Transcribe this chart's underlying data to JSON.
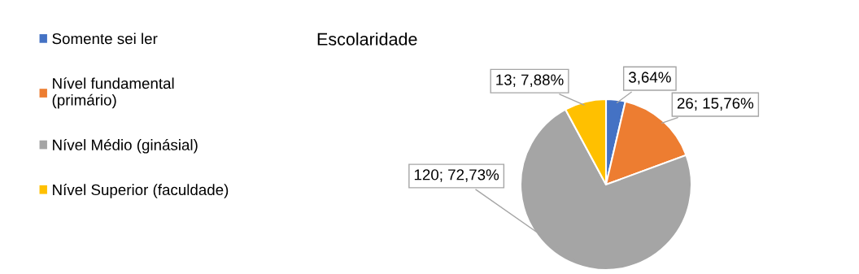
{
  "chart_data": {
    "type": "pie",
    "title": "Escolaridade",
    "categories": [
      "Somente sei ler",
      "Nível fundamental\n(primário)",
      "Nível Médio (ginásial)",
      "Nível Superior (faculdade)"
    ],
    "values": [
      3.64,
      15.76,
      72.73,
      7.88
    ],
    "colors": [
      "#4472c4",
      "#ed7d31",
      "#a5a5a5",
      "#ffc000"
    ],
    "value_labels": [
      "3,64%",
      "26; 15,76%",
      "120; 72,73%",
      "13; 7,88%"
    ],
    "legend": "left"
  }
}
